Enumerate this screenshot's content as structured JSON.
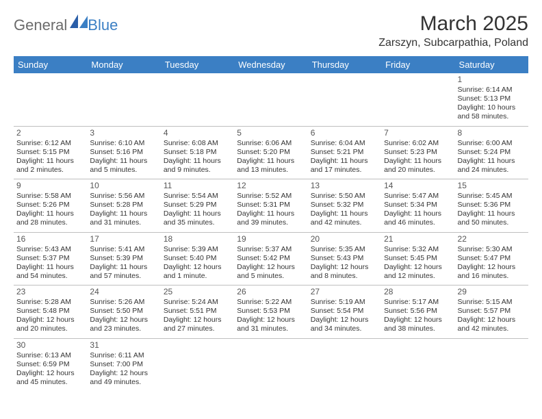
{
  "logo": {
    "part1": "General",
    "part2": "Blue"
  },
  "title": "March 2025",
  "location": "Zarszyn, Subcarpathia, Poland",
  "colors": {
    "header_bg": "#3b7fc4",
    "header_fg": "#ffffff",
    "border": "#bfbfbf",
    "text": "#333333",
    "logo_gray": "#6b6b6b",
    "logo_blue": "#3b7fc4"
  },
  "weekdays": [
    "Sunday",
    "Monday",
    "Tuesday",
    "Wednesday",
    "Thursday",
    "Friday",
    "Saturday"
  ],
  "weeks": [
    [
      null,
      null,
      null,
      null,
      null,
      null,
      {
        "day": "1",
        "sunrise": "Sunrise: 6:14 AM",
        "sunset": "Sunset: 5:13 PM",
        "daylight": "Daylight: 10 hours and 58 minutes."
      }
    ],
    [
      {
        "day": "2",
        "sunrise": "Sunrise: 6:12 AM",
        "sunset": "Sunset: 5:15 PM",
        "daylight": "Daylight: 11 hours and 2 minutes."
      },
      {
        "day": "3",
        "sunrise": "Sunrise: 6:10 AM",
        "sunset": "Sunset: 5:16 PM",
        "daylight": "Daylight: 11 hours and 5 minutes."
      },
      {
        "day": "4",
        "sunrise": "Sunrise: 6:08 AM",
        "sunset": "Sunset: 5:18 PM",
        "daylight": "Daylight: 11 hours and 9 minutes."
      },
      {
        "day": "5",
        "sunrise": "Sunrise: 6:06 AM",
        "sunset": "Sunset: 5:20 PM",
        "daylight": "Daylight: 11 hours and 13 minutes."
      },
      {
        "day": "6",
        "sunrise": "Sunrise: 6:04 AM",
        "sunset": "Sunset: 5:21 PM",
        "daylight": "Daylight: 11 hours and 17 minutes."
      },
      {
        "day": "7",
        "sunrise": "Sunrise: 6:02 AM",
        "sunset": "Sunset: 5:23 PM",
        "daylight": "Daylight: 11 hours and 20 minutes."
      },
      {
        "day": "8",
        "sunrise": "Sunrise: 6:00 AM",
        "sunset": "Sunset: 5:24 PM",
        "daylight": "Daylight: 11 hours and 24 minutes."
      }
    ],
    [
      {
        "day": "9",
        "sunrise": "Sunrise: 5:58 AM",
        "sunset": "Sunset: 5:26 PM",
        "daylight": "Daylight: 11 hours and 28 minutes."
      },
      {
        "day": "10",
        "sunrise": "Sunrise: 5:56 AM",
        "sunset": "Sunset: 5:28 PM",
        "daylight": "Daylight: 11 hours and 31 minutes."
      },
      {
        "day": "11",
        "sunrise": "Sunrise: 5:54 AM",
        "sunset": "Sunset: 5:29 PM",
        "daylight": "Daylight: 11 hours and 35 minutes."
      },
      {
        "day": "12",
        "sunrise": "Sunrise: 5:52 AM",
        "sunset": "Sunset: 5:31 PM",
        "daylight": "Daylight: 11 hours and 39 minutes."
      },
      {
        "day": "13",
        "sunrise": "Sunrise: 5:50 AM",
        "sunset": "Sunset: 5:32 PM",
        "daylight": "Daylight: 11 hours and 42 minutes."
      },
      {
        "day": "14",
        "sunrise": "Sunrise: 5:47 AM",
        "sunset": "Sunset: 5:34 PM",
        "daylight": "Daylight: 11 hours and 46 minutes."
      },
      {
        "day": "15",
        "sunrise": "Sunrise: 5:45 AM",
        "sunset": "Sunset: 5:36 PM",
        "daylight": "Daylight: 11 hours and 50 minutes."
      }
    ],
    [
      {
        "day": "16",
        "sunrise": "Sunrise: 5:43 AM",
        "sunset": "Sunset: 5:37 PM",
        "daylight": "Daylight: 11 hours and 54 minutes."
      },
      {
        "day": "17",
        "sunrise": "Sunrise: 5:41 AM",
        "sunset": "Sunset: 5:39 PM",
        "daylight": "Daylight: 11 hours and 57 minutes."
      },
      {
        "day": "18",
        "sunrise": "Sunrise: 5:39 AM",
        "sunset": "Sunset: 5:40 PM",
        "daylight": "Daylight: 12 hours and 1 minute."
      },
      {
        "day": "19",
        "sunrise": "Sunrise: 5:37 AM",
        "sunset": "Sunset: 5:42 PM",
        "daylight": "Daylight: 12 hours and 5 minutes."
      },
      {
        "day": "20",
        "sunrise": "Sunrise: 5:35 AM",
        "sunset": "Sunset: 5:43 PM",
        "daylight": "Daylight: 12 hours and 8 minutes."
      },
      {
        "day": "21",
        "sunrise": "Sunrise: 5:32 AM",
        "sunset": "Sunset: 5:45 PM",
        "daylight": "Daylight: 12 hours and 12 minutes."
      },
      {
        "day": "22",
        "sunrise": "Sunrise: 5:30 AM",
        "sunset": "Sunset: 5:47 PM",
        "daylight": "Daylight: 12 hours and 16 minutes."
      }
    ],
    [
      {
        "day": "23",
        "sunrise": "Sunrise: 5:28 AM",
        "sunset": "Sunset: 5:48 PM",
        "daylight": "Daylight: 12 hours and 20 minutes."
      },
      {
        "day": "24",
        "sunrise": "Sunrise: 5:26 AM",
        "sunset": "Sunset: 5:50 PM",
        "daylight": "Daylight: 12 hours and 23 minutes."
      },
      {
        "day": "25",
        "sunrise": "Sunrise: 5:24 AM",
        "sunset": "Sunset: 5:51 PM",
        "daylight": "Daylight: 12 hours and 27 minutes."
      },
      {
        "day": "26",
        "sunrise": "Sunrise: 5:22 AM",
        "sunset": "Sunset: 5:53 PM",
        "daylight": "Daylight: 12 hours and 31 minutes."
      },
      {
        "day": "27",
        "sunrise": "Sunrise: 5:19 AM",
        "sunset": "Sunset: 5:54 PM",
        "daylight": "Daylight: 12 hours and 34 minutes."
      },
      {
        "day": "28",
        "sunrise": "Sunrise: 5:17 AM",
        "sunset": "Sunset: 5:56 PM",
        "daylight": "Daylight: 12 hours and 38 minutes."
      },
      {
        "day": "29",
        "sunrise": "Sunrise: 5:15 AM",
        "sunset": "Sunset: 5:57 PM",
        "daylight": "Daylight: 12 hours and 42 minutes."
      }
    ],
    [
      {
        "day": "30",
        "sunrise": "Sunrise: 6:13 AM",
        "sunset": "Sunset: 6:59 PM",
        "daylight": "Daylight: 12 hours and 45 minutes."
      },
      {
        "day": "31",
        "sunrise": "Sunrise: 6:11 AM",
        "sunset": "Sunset: 7:00 PM",
        "daylight": "Daylight: 12 hours and 49 minutes."
      },
      null,
      null,
      null,
      null,
      null
    ]
  ]
}
